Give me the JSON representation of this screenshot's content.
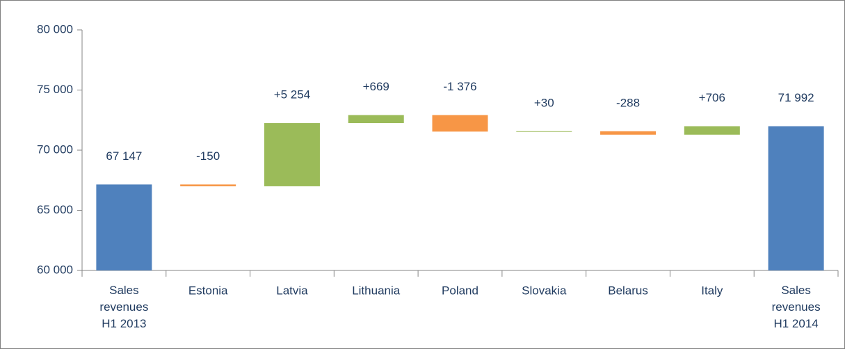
{
  "chart_data": {
    "type": "waterfall",
    "categories": [
      "Sales\nrevenues\nH1 2013",
      "Estonia",
      "Latvia",
      "Lithuania",
      "Poland",
      "Slovakia",
      "Belarus",
      "Italy",
      "Sales\nrevenues\nH1 2014"
    ],
    "values": [
      67147,
      -150,
      5254,
      669,
      -1376,
      30,
      -288,
      706,
      71992
    ],
    "value_labels": [
      "67 147",
      "-150",
      "+5 254",
      "+669",
      "-1 376",
      "+30",
      "-288",
      "+706",
      "71 992"
    ],
    "totals": [
      true,
      false,
      false,
      false,
      false,
      false,
      false,
      false,
      true
    ],
    "colors": {
      "total": "#4f81bd",
      "increase": "#9bbb59",
      "decrease": "#f79646"
    },
    "ylim": [
      60000,
      80000
    ],
    "yticks": [
      {
        "value": 60000,
        "label": "60 000"
      },
      {
        "value": 65000,
        "label": "65 000"
      },
      {
        "value": 70000,
        "label": "70 000"
      },
      {
        "value": 75000,
        "label": "75 000"
      },
      {
        "value": 80000,
        "label": "80 000"
      }
    ],
    "grid": false
  }
}
